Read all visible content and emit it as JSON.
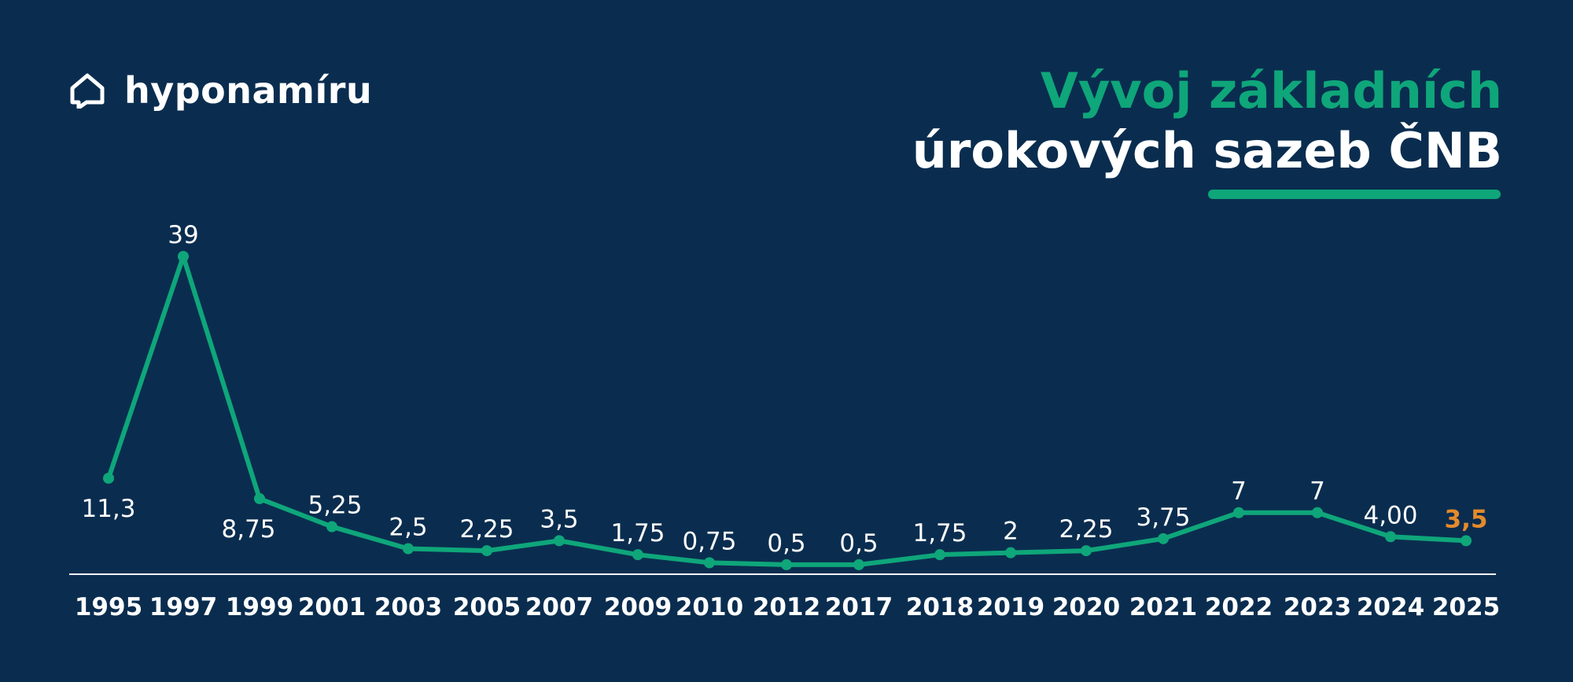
{
  "brand": {
    "name": "hyponamíru",
    "icon": "house-chat-icon"
  },
  "title": {
    "line1": "Vývoj základních",
    "line2": "úrokových sazeb ČNB"
  },
  "colors": {
    "background": "#0a2d4f",
    "accent": "#0fa67a",
    "highlight": "#e48a2c",
    "text": "#ffffff"
  },
  "chart_data": {
    "type": "line",
    "title": "Vývoj základních úrokových sazeb ČNB",
    "xlabel": "",
    "ylabel": "",
    "ylim": [
      0,
      39
    ],
    "grid": false,
    "categories": [
      "1995",
      "1997",
      "1999",
      "2001",
      "2003",
      "2005",
      "2007",
      "2009",
      "2010",
      "2012",
      "2017",
      "2018",
      "2019",
      "2020",
      "2021",
      "2022",
      "2023",
      "2024",
      "2025"
    ],
    "values": [
      11.3,
      39,
      8.75,
      5.25,
      2.5,
      2.25,
      3.5,
      1.75,
      0.75,
      0.5,
      0.5,
      1.75,
      2,
      2.25,
      3.75,
      7,
      7,
      4.0,
      3.5
    ],
    "labels": [
      "11,3",
      "39",
      "8,75",
      "5,25",
      "2,5",
      "2,25",
      "3,5",
      "1,75",
      "0,75",
      "0,5",
      "0,5",
      "1,75",
      "2",
      "2,25",
      "3,75",
      "7",
      "7",
      "4,00",
      "3,5"
    ],
    "highlight_last": true
  }
}
